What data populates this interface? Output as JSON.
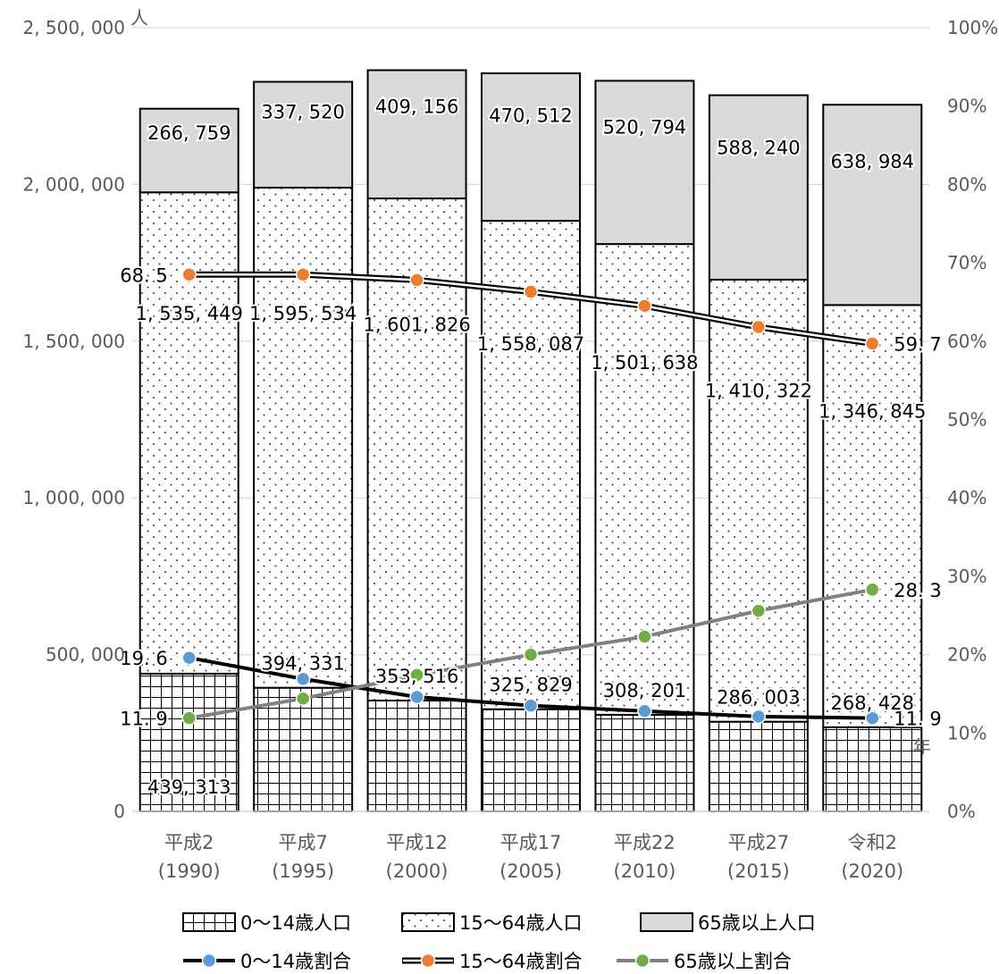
{
  "chart_data": {
    "type": "bar",
    "stacked": true,
    "categories": [
      [
        "平成2",
        "(1990)"
      ],
      [
        "平成7",
        "(1995)"
      ],
      [
        "平成12",
        "(2000)"
      ],
      [
        "平成17",
        "(2005)"
      ],
      [
        "平成22",
        "(2010)"
      ],
      [
        "平成27",
        "(2015)"
      ],
      [
        "令和2",
        "(2020)"
      ]
    ],
    "series": [
      {
        "name": "0～14歳人口",
        "pattern": "grid",
        "values": [
          439313,
          394331,
          353516,
          325829,
          308201,
          286003,
          268428
        ],
        "labels": [
          "439, 313",
          "394, 331",
          "353, 516",
          "325, 829",
          "308, 201",
          "286, 003",
          "268, 428"
        ]
      },
      {
        "name": "15～64歳人口",
        "pattern": "dots",
        "values": [
          1535449,
          1595534,
          1601826,
          1558087,
          1501638,
          1410322,
          1346845
        ],
        "labels": [
          "1, 535, 449",
          "1, 595, 534",
          "1, 601, 826",
          "1, 558, 087",
          "1, 501, 638",
          "1, 410, 322",
          "1, 346, 845"
        ]
      },
      {
        "name": "65歳以上人口",
        "pattern": "gray",
        "values": [
          266759,
          337520,
          409156,
          470512,
          520794,
          588240,
          638984
        ],
        "labels": [
          "266, 759",
          "337, 520",
          "409, 156",
          "470, 512",
          "520, 794",
          "588, 240",
          "638, 984"
        ]
      }
    ],
    "line_series": [
      {
        "name": "0～14歳割合",
        "color": "#5B9BD5",
        "line": "#000000",
        "values": [
          19.6,
          16.9,
          14.6,
          13.5,
          12.8,
          12.1,
          11.9
        ],
        "start_label": "19. 6",
        "end_label": "11. 9"
      },
      {
        "name": "15～64歳割合",
        "color": "#ED7D31",
        "line": "double",
        "values": [
          68.5,
          68.5,
          67.8,
          66.3,
          64.5,
          61.8,
          59.7
        ],
        "start_label": "68. 5",
        "end_label": "59. 7"
      },
      {
        "name": "65歳以上割合",
        "color": "#70AD47",
        "line": "#808080",
        "values": [
          11.9,
          14.4,
          17.4,
          20.0,
          22.3,
          25.6,
          28.3
        ],
        "start_label": "11. 9",
        "end_label": "28. 3"
      }
    ],
    "y_left": {
      "min": 0,
      "max": 2500000,
      "step": 500000,
      "unit": "人",
      "tick_labels": [
        "0",
        "500, 000",
        "1, 000, 000",
        "1, 500, 000",
        "2, 000, 000",
        "2, 500, 000"
      ]
    },
    "y_right": {
      "min": 0,
      "max": 100,
      "step": 10,
      "tick_labels": [
        "0%",
        "10%",
        "20%",
        "30%",
        "40%",
        "50%",
        "60%",
        "70%",
        "80%",
        "90%",
        "100%"
      ]
    },
    "x_unit": "年",
    "legend_position": "bottom"
  }
}
